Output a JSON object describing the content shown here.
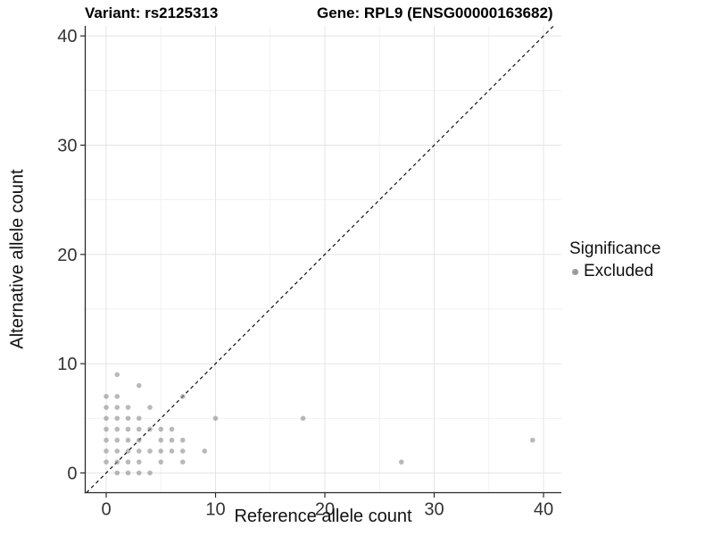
{
  "titles": {
    "variant": "Variant: rs2125313",
    "gene": "Gene: RPL9 (ENSG00000163682)"
  },
  "legend": {
    "title": "Significance",
    "items": [
      {
        "label": "Excluded",
        "color": "#9b9b9b"
      }
    ]
  },
  "colors": {
    "background": "#ffffff",
    "grid_major": "#e4e4e4",
    "grid_minor": "#f1f1f1",
    "axis_line": "#2a2a2a",
    "tick_label": "#333333",
    "point": "#8a8a8a",
    "identity_line": "#111111"
  },
  "chart_data": {
    "type": "scatter",
    "title": "Variant: rs2125313 | Gene: RPL9 (ENSG00000163682)",
    "xlabel": "Reference allele count",
    "ylabel": "Alternative allele count",
    "xlim": [
      -2,
      42
    ],
    "ylim": [
      -2,
      42
    ],
    "xticks": [
      0,
      10,
      20,
      30,
      40
    ],
    "yticks": [
      0,
      10,
      20,
      30,
      40
    ],
    "minor_xticks": [
      5,
      15,
      25,
      35
    ],
    "minor_yticks": [
      5,
      15,
      25,
      35
    ],
    "grid": true,
    "legend_position": "right",
    "identity_line": {
      "type": "y=x",
      "style": "dashed",
      "color": "#111111"
    },
    "series": [
      {
        "name": "Excluded",
        "color": "#8a8a8a",
        "points": [
          [
            1,
            0
          ],
          [
            2,
            0
          ],
          [
            3,
            0
          ],
          [
            4,
            0
          ],
          [
            0,
            1
          ],
          [
            1,
            1
          ],
          [
            2,
            1
          ],
          [
            3,
            1
          ],
          [
            5,
            1
          ],
          [
            7,
            1
          ],
          [
            27,
            1
          ],
          [
            0,
            2
          ],
          [
            1,
            2
          ],
          [
            2,
            2
          ],
          [
            3,
            2
          ],
          [
            4,
            2
          ],
          [
            5,
            2
          ],
          [
            6,
            2
          ],
          [
            7,
            2
          ],
          [
            9,
            2
          ],
          [
            0,
            3
          ],
          [
            1,
            3
          ],
          [
            2,
            3
          ],
          [
            3,
            3
          ],
          [
            5,
            3
          ],
          [
            6,
            3
          ],
          [
            7,
            3
          ],
          [
            39,
            3
          ],
          [
            0,
            4
          ],
          [
            1,
            4
          ],
          [
            2,
            4
          ],
          [
            3,
            4
          ],
          [
            4,
            4
          ],
          [
            5,
            4
          ],
          [
            6,
            4
          ],
          [
            0,
            5
          ],
          [
            1,
            5
          ],
          [
            2,
            5
          ],
          [
            3,
            5
          ],
          [
            10,
            5
          ],
          [
            18,
            5
          ],
          [
            0,
            6
          ],
          [
            1,
            6
          ],
          [
            2,
            6
          ],
          [
            4,
            6
          ],
          [
            0,
            7
          ],
          [
            1,
            7
          ],
          [
            7,
            7
          ],
          [
            3,
            8
          ],
          [
            1,
            9
          ]
        ]
      }
    ]
  }
}
